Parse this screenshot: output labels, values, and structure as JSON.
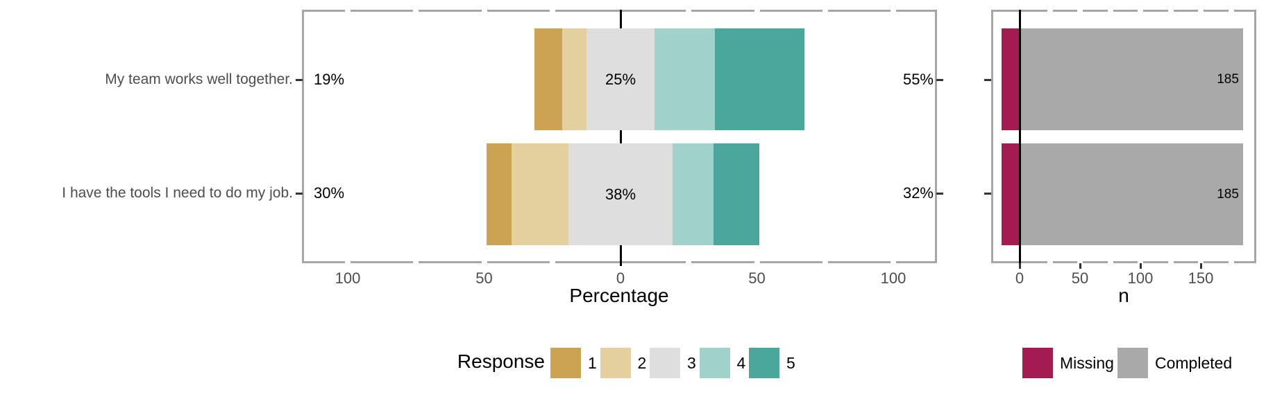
{
  "colors": {
    "response": [
      "#CCA352",
      "#E3D09E",
      "#DEDEDE",
      "#A0D2CA",
      "#4BA69C"
    ],
    "missing": "#A31B50",
    "completed": "#A9A9A9",
    "panel_border": "#A6A6A6",
    "zero_line": "#000000",
    "axis_tick": "#333333",
    "tick_text": "#4D4D4D",
    "question_text": "#4D4D4D"
  },
  "chart_data": [
    {
      "type": "diverging_stacked_bar",
      "panel": "left",
      "xlabel": "Percentage",
      "x_ticks": [
        "100",
        "50",
        "0",
        "50",
        "100"
      ],
      "x_tick_units": [
        -100,
        -50,
        0,
        50,
        100
      ],
      "xlim": [
        -105,
        105
      ],
      "grid": false,
      "legend_position": "bottom",
      "legend_title": "Response",
      "legend": [
        "1",
        "2",
        "3",
        "4",
        "5"
      ],
      "rows": [
        {
          "question": "My team works well together.",
          "low_label": "19%",
          "neutral_label": "25%",
          "high_label": "55%",
          "values": [
            10,
            9,
            25,
            22,
            33
          ]
        },
        {
          "question": "I have the tools I need to do my job.",
          "low_label": "30%",
          "neutral_label": "38%",
          "high_label": "32%",
          "values": [
            9,
            21,
            38,
            15,
            17
          ]
        }
      ]
    },
    {
      "type": "bar",
      "panel": "right",
      "xlabel": "n",
      "x_ticks": [
        "0",
        "50",
        "100",
        "150"
      ],
      "x_tick_units": [
        0,
        50,
        100,
        150
      ],
      "xlim": [
        -25,
        195
      ],
      "legend": [
        "Missing",
        "Completed"
      ],
      "rows": [
        {
          "missing": 15,
          "completed": 185,
          "count_label": "185"
        },
        {
          "missing": 15,
          "completed": 185,
          "count_label": "185"
        }
      ]
    }
  ]
}
